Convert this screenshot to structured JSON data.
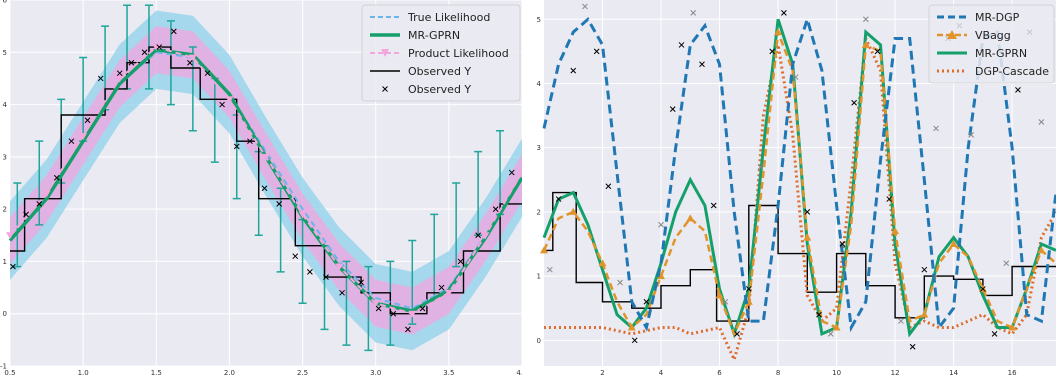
{
  "colors": {
    "background": "#eaeaf2",
    "grid": "#ffffff",
    "blue": "#1f77b4",
    "orange": "#dd8452",
    "green": "#14a06a",
    "light_blue_band": "#87ceeb",
    "light_blue_dash": "#6cb4ea",
    "pink": "#f4a6df",
    "purple_band": "#c9a0dc",
    "errorbar": "#20a69a",
    "black": "#000000",
    "dgp_orange": "#de6d2d",
    "vbagg_orange": "#e0942a"
  },
  "chart_data": [
    {
      "type": "line",
      "title": "",
      "xlabel": "",
      "ylabel": "",
      "xlim": [
        0.5,
        4.0
      ],
      "ylim": [
        -1,
        6
      ],
      "xticks": [
        0.5,
        1.0,
        1.5,
        2.0,
        2.5,
        3.0,
        3.5,
        4.0
      ],
      "xtick_labels": [
        "0.5",
        "1.0",
        "1.5",
        "2.0",
        "2.5",
        "3.0",
        "3.5",
        "4.0"
      ],
      "yticks": [
        -1,
        0,
        1,
        2,
        3,
        4,
        5,
        6
      ],
      "ytick_labels": [
        "-1",
        "0",
        "1",
        "2",
        "3",
        "4",
        "5",
        "6"
      ],
      "grid": true,
      "legend_position": "top-right",
      "legend": [
        "True Likelihood",
        "MR-GPRN",
        "Product Likelihood",
        "Observed Y",
        "Observed Y"
      ],
      "series": [
        {
          "name": "True Likelihood",
          "style": "dashed",
          "x": [
            0.5,
            0.75,
            1.0,
            1.25,
            1.5,
            1.75,
            2.0,
            2.25,
            2.5,
            2.75,
            3.0,
            3.25,
            3.5,
            3.75,
            4.0
          ],
          "y": [
            1.4,
            2.2,
            3.3,
            4.4,
            5.0,
            4.9,
            4.2,
            3.1,
            2.0,
            1.0,
            0.3,
            0.1,
            0.5,
            1.5,
            2.6
          ]
        },
        {
          "name": "MR-GPRN",
          "style": "solid",
          "x": [
            0.5,
            0.75,
            1.0,
            1.25,
            1.5,
            1.75,
            2.0,
            2.25,
            2.5,
            2.75,
            3.0,
            3.25,
            3.5,
            3.75,
            4.0
          ],
          "y": [
            1.4,
            2.2,
            3.3,
            4.4,
            5.05,
            4.95,
            4.2,
            3.0,
            1.85,
            0.9,
            0.2,
            0.05,
            0.45,
            1.45,
            2.6
          ]
        },
        {
          "name": "Product Likelihood",
          "style": "dashed-triangle",
          "x": [
            0.5,
            0.75,
            1.0,
            1.25,
            1.5,
            1.75,
            2.0,
            2.25,
            2.5,
            2.75,
            3.0,
            3.25,
            3.5,
            3.75,
            4.0
          ],
          "y": [
            1.5,
            2.3,
            3.4,
            4.5,
            5.1,
            4.9,
            4.1,
            3.0,
            1.9,
            0.9,
            0.2,
            0.0,
            0.4,
            1.5,
            2.7
          ]
        },
        {
          "name": "Observed Y",
          "style": "step",
          "x": [
            0.5,
            0.6,
            0.6,
            0.85,
            0.85,
            1.15,
            1.15,
            1.3,
            1.3,
            1.45,
            1.45,
            1.6,
            1.6,
            1.8,
            1.8,
            2.05,
            2.05,
            2.2,
            2.2,
            2.45,
            2.45,
            2.65,
            2.65,
            2.9,
            2.9,
            3.1,
            3.1,
            3.35,
            3.35,
            3.6,
            3.6,
            3.85,
            3.85,
            4.0
          ],
          "y": [
            1.2,
            1.2,
            2.2,
            2.2,
            3.8,
            3.8,
            4.3,
            4.3,
            4.8,
            4.8,
            5.1,
            5.1,
            4.7,
            4.7,
            4.1,
            4.1,
            3.3,
            3.3,
            2.2,
            2.2,
            1.3,
            1.3,
            0.7,
            0.7,
            0.4,
            0.4,
            0.0,
            0.0,
            0.4,
            0.4,
            1.2,
            1.2,
            2.1,
            2.1
          ]
        },
        {
          "name": "Observed Y",
          "style": "scatter-x",
          "x": [
            0.52,
            0.61,
            0.7,
            0.82,
            0.92,
            1.03,
            1.12,
            1.25,
            1.33,
            1.42,
            1.52,
            1.62,
            1.73,
            1.85,
            1.95,
            2.05,
            2.14,
            2.24,
            2.34,
            2.45,
            2.55,
            2.66,
            2.77,
            2.9,
            3.02,
            3.12,
            3.22,
            3.32,
            3.45,
            3.58,
            3.7,
            3.82,
            3.93
          ],
          "y": [
            0.9,
            1.9,
            2.1,
            2.6,
            3.3,
            3.7,
            4.5,
            4.6,
            4.8,
            5.0,
            5.1,
            5.4,
            4.8,
            4.6,
            4.0,
            3.2,
            3.3,
            2.4,
            2.1,
            1.1,
            0.8,
            0.7,
            0.4,
            0.6,
            0.1,
            0.0,
            -0.3,
            0.1,
            0.5,
            1.0,
            1.5,
            2.0,
            2.7
          ]
        },
        {
          "name": "",
          "style": "errorbar",
          "x": [
            0.55,
            0.7,
            0.85,
            1.0,
            1.15,
            1.3,
            1.45,
            1.6,
            1.75,
            1.9,
            2.05,
            2.2,
            2.35,
            2.5,
            2.65,
            2.8,
            2.95,
            3.1,
            3.25,
            3.4,
            3.55,
            3.7,
            3.85
          ],
          "y": [
            1.7,
            2.5,
            3.3,
            4.1,
            4.7,
            5.1,
            5.1,
            4.8,
            4.3,
            3.7,
            3.0,
            2.3,
            1.6,
            1.0,
            0.5,
            0.2,
            0.1,
            0.2,
            0.6,
            1.1,
            1.7,
            2.3,
            2.7
          ],
          "err": [
            0.8,
            0.8,
            0.8,
            0.8,
            0.8,
            0.8,
            0.8,
            0.8,
            0.8,
            0.8,
            0.8,
            0.8,
            0.8,
            0.8,
            0.8,
            0.8,
            0.8,
            0.8,
            0.8,
            0.8,
            0.8,
            0.8,
            0.8
          ]
        }
      ]
    },
    {
      "type": "line",
      "title": "",
      "xlabel": "",
      "ylabel": "",
      "xlim": [
        0,
        17.5
      ],
      "ylim": [
        -0.4,
        5.3
      ],
      "xticks": [
        2,
        4,
        6,
        8,
        10,
        12,
        14,
        16
      ],
      "xtick_labels": [
        "2",
        "4",
        "6",
        "8",
        "10",
        "12",
        "14",
        "16"
      ],
      "yticks": [
        0,
        1,
        2,
        3,
        4,
        5
      ],
      "ytick_labels": [
        "0",
        "1",
        "2",
        "3",
        "4",
        "5"
      ],
      "grid": true,
      "legend_position": "top-right",
      "legend": [
        "MR-DGP",
        "VBagg",
        "MR-GPRN",
        "DGP-Cascade"
      ],
      "series": [
        {
          "name": "MR-DGP",
          "style": "dashed",
          "x": [
            0,
            0.5,
            1,
            1.5,
            2,
            2.5,
            3,
            3.5,
            4,
            4.5,
            5,
            5.5,
            6,
            6.5,
            7,
            7.5,
            8,
            8.5,
            9,
            9.5,
            10,
            10.5,
            11,
            11.5,
            12,
            12.5,
            13,
            13.5,
            14,
            14.5,
            15,
            15.5,
            16,
            16.5,
            17,
            17.5
          ],
          "y": [
            3.3,
            4.3,
            4.8,
            5.0,
            4.6,
            2.6,
            0.6,
            0.2,
            1.2,
            3.0,
            4.6,
            4.9,
            4.3,
            2.0,
            0.3,
            0.3,
            2.1,
            4.3,
            5.0,
            4.2,
            2.1,
            0.2,
            0.6,
            2.8,
            4.7,
            4.7,
            2.5,
            0.2,
            0.5,
            3.0,
            4.7,
            4.8,
            3.0,
            0.4,
            0.3,
            2.3
          ]
        },
        {
          "name": "VBagg",
          "style": "dashed-triangle",
          "x": [
            0,
            0.5,
            1,
            1.5,
            2,
            2.5,
            3,
            3.5,
            4,
            4.5,
            5,
            5.5,
            6,
            6.5,
            7,
            7.5,
            8,
            8.5,
            9,
            9.5,
            10,
            10.5,
            11,
            11.5,
            12,
            12.5,
            13,
            13.5,
            14,
            14.5,
            15,
            15.5,
            16,
            16.5,
            17,
            17.5
          ],
          "y": [
            1.4,
            1.9,
            2.0,
            1.7,
            1.2,
            0.6,
            0.2,
            0.4,
            1.0,
            1.6,
            1.9,
            1.7,
            0.7,
            0.1,
            0.6,
            2.6,
            4.8,
            4.2,
            1.6,
            0.3,
            0.2,
            1.8,
            4.6,
            4.5,
            1.7,
            0.3,
            0.4,
            1.2,
            1.5,
            1.3,
            0.8,
            0.3,
            0.2,
            0.8,
            1.4,
            1.2
          ]
        },
        {
          "name": "MR-GPRN",
          "style": "solid",
          "x": [
            0,
            0.5,
            1,
            1.5,
            2,
            2.5,
            3,
            3.5,
            4,
            4.5,
            5,
            5.5,
            6,
            6.5,
            7,
            7.5,
            8,
            8.5,
            9,
            9.5,
            10,
            10.5,
            11,
            11.5,
            12,
            12.5,
            13,
            13.5,
            14,
            14.5,
            15,
            15.5,
            16,
            16.5,
            17,
            17.5
          ],
          "y": [
            1.6,
            2.2,
            2.3,
            1.8,
            1.1,
            0.4,
            0.2,
            0.5,
            1.2,
            2.0,
            2.5,
            2.1,
            0.8,
            0.1,
            0.8,
            3.0,
            5.0,
            4.3,
            1.5,
            0.1,
            0.2,
            2.0,
            4.8,
            4.6,
            1.5,
            0.1,
            0.4,
            1.3,
            1.6,
            1.3,
            0.7,
            0.2,
            0.2,
            0.8,
            1.5,
            1.4
          ]
        },
        {
          "name": "DGP-Cascade",
          "style": "dotted",
          "x": [
            0,
            0.5,
            1,
            1.5,
            2,
            2.5,
            3,
            3.5,
            4,
            4.5,
            5,
            5.5,
            6,
            6.5,
            7,
            7.5,
            8,
            8.5,
            9,
            9.5,
            10,
            10.5,
            11,
            11.5,
            12,
            12.5,
            13,
            13.5,
            14,
            14.5,
            15,
            15.5,
            16,
            16.5,
            17,
            17.5
          ],
          "y": [
            0.2,
            0.2,
            0.2,
            0.2,
            0.2,
            0.15,
            0.1,
            0.15,
            0.2,
            0.2,
            0.1,
            0.15,
            0.2,
            -0.3,
            0.5,
            3.5,
            4.6,
            3.2,
            0.7,
            0.3,
            0.5,
            2.5,
            4.7,
            4.2,
            1.2,
            0.2,
            0.3,
            0.2,
            0.2,
            0.3,
            0.4,
            0.2,
            0.1,
            0.4,
            1.6,
            2.0
          ]
        },
        {
          "name": "",
          "style": "step",
          "x": [
            0,
            0.3,
            0.3,
            1.1,
            1.1,
            2.0,
            2.0,
            3.0,
            3.0,
            4.0,
            4.0,
            5.0,
            5.0,
            5.9,
            5.9,
            7.0,
            7.0,
            8.0,
            8.0,
            9.0,
            9.0,
            10.0,
            10.0,
            11.0,
            11.0,
            12.0,
            12.0,
            13.0,
            13.0,
            14.0,
            14.0,
            15.0,
            15.0,
            16.0,
            16.0,
            17.5
          ],
          "y": [
            1.4,
            1.4,
            2.3,
            2.3,
            0.9,
            0.9,
            0.6,
            0.6,
            0.5,
            0.5,
            0.85,
            0.85,
            1.1,
            1.1,
            0.3,
            0.3,
            2.1,
            2.1,
            1.35,
            1.35,
            0.75,
            0.75,
            1.35,
            1.35,
            0.85,
            0.85,
            0.35,
            0.35,
            1.0,
            1.0,
            0.95,
            0.95,
            0.7,
            0.7,
            1.15,
            1.15
          ]
        },
        {
          "name": "",
          "style": "scatter-x",
          "x": [
            0.2,
            0.5,
            1.0,
            1.4,
            1.8,
            2.2,
            2.6,
            3.1,
            3.5,
            4.0,
            4.4,
            4.7,
            5.1,
            5.4,
            5.8,
            6.2,
            6.6,
            7.0,
            7.4,
            7.8,
            8.2,
            8.6,
            9.0,
            9.4,
            9.8,
            10.2,
            10.6,
            11.0,
            11.4,
            11.8,
            12.2,
            12.6,
            13.0,
            13.4,
            13.8,
            14.2,
            14.6,
            15.0,
            15.4,
            15.8,
            16.2,
            16.6,
            17.0
          ],
          "y": [
            1.1,
            2.2,
            4.2,
            5.2,
            4.5,
            2.4,
            0.9,
            0.0,
            0.6,
            1.8,
            3.6,
            4.6,
            5.1,
            4.3,
            2.1,
            0.6,
            0.1,
            0.8,
            2.7,
            4.5,
            5.1,
            4.1,
            2.0,
            0.4,
            0.1,
            1.5,
            3.7,
            5.0,
            4.5,
            2.2,
            0.3,
            -0.1,
            1.1,
            3.3,
            4.7,
            4.9,
            3.2,
            0.8,
            0.1,
            1.2,
            3.9,
            4.8,
            3.4
          ]
        }
      ]
    }
  ]
}
